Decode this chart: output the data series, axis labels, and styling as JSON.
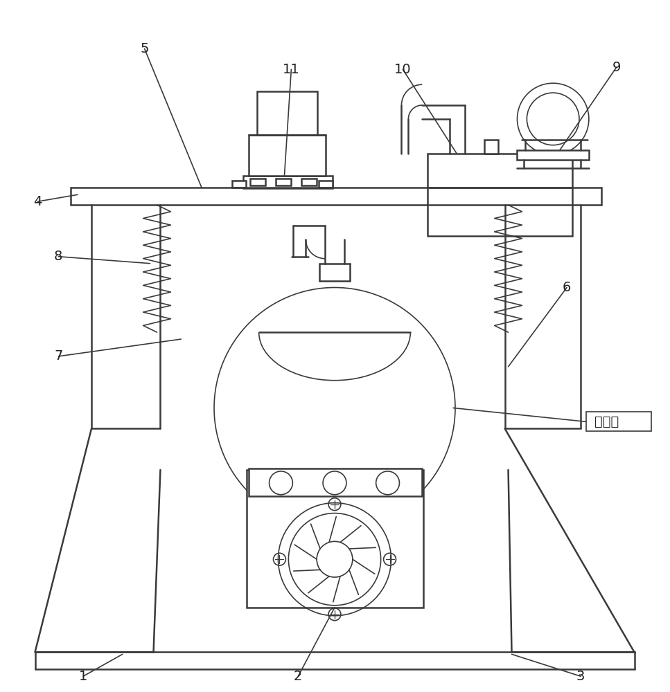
{
  "bg_color": "#ffffff",
  "lc": "#3a3a3a",
  "lw": 1.8,
  "lw_thin": 1.2,
  "figsize": [
    9.67,
    10.0
  ],
  "dpi": 100,
  "glass_ball_text": "玻璃球"
}
